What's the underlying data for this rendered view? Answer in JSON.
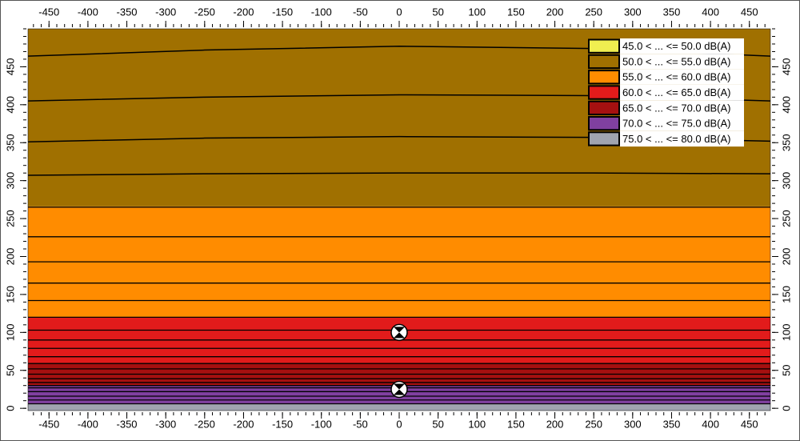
{
  "chart_data": {
    "type": "contour",
    "xlim": [
      -477,
      477
    ],
    "ylim": [
      -3,
      500
    ],
    "xticks": [
      -450,
      -400,
      -350,
      -300,
      -250,
      -200,
      -150,
      -100,
      -50,
      0,
      50,
      100,
      150,
      200,
      250,
      300,
      350,
      400,
      450
    ],
    "yticks": [
      0,
      50,
      100,
      150,
      200,
      250,
      300,
      350,
      400,
      450
    ],
    "minor_step": 10,
    "legend": "top-right",
    "series": [
      {
        "name": "45.0 < ... <= 50.0 dB(A)",
        "color": "#f0ee50",
        "range": null
      },
      {
        "name": "50.0 < ... <= 55.0 dB(A)",
        "color": "#a07000",
        "range": [
          266,
          500
        ]
      },
      {
        "name": "55.0 < ... <= 60.0 dB(A)",
        "color": "#ff8c00",
        "range": [
          120,
          266
        ]
      },
      {
        "name": "60.0 < ... <= 65.0 dB(A)",
        "color": "#e21b1b",
        "range": [
          59,
          120
        ]
      },
      {
        "name": "65.0 < ... <= 70.0 dB(A)",
        "color": "#a51010",
        "range": [
          30,
          59
        ]
      },
      {
        "name": "70.0 < ... <= 75.0 dB(A)",
        "color": "#8040a0",
        "range": [
          6,
          30
        ]
      },
      {
        "name": "75.0 < ... <= 80.0 dB(A)",
        "color": "#a0a4b0",
        "range": [
          -3,
          6
        ]
      }
    ],
    "contour_x": [
      -477,
      -250,
      0,
      250,
      477
    ],
    "contours": [
      [
        464,
        472,
        477,
        474,
        464
      ],
      [
        405,
        410,
        413,
        412,
        405
      ],
      [
        351,
        356,
        358,
        357,
        352
      ],
      [
        307,
        309,
        310,
        310,
        309
      ]
    ],
    "flat_contours": [
      265,
      226,
      193,
      165,
      142,
      120,
      103,
      90,
      79,
      68,
      59,
      52,
      45,
      39,
      34,
      30,
      27,
      22,
      16,
      11,
      6
    ],
    "sources": {
      "x": [
        0,
        0
      ],
      "y": [
        100,
        25
      ]
    }
  }
}
